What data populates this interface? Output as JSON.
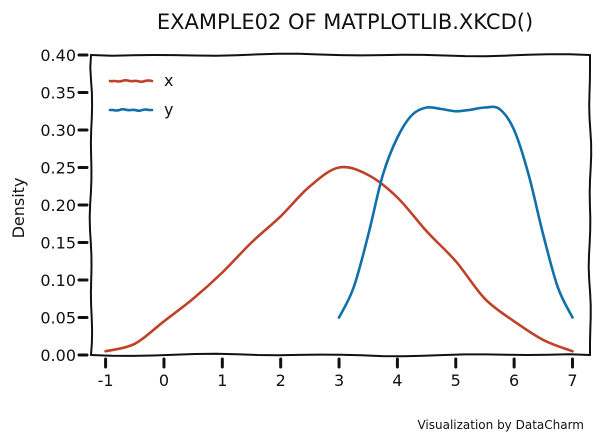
{
  "chart_data": {
    "type": "line",
    "title": "EXAMPLE02 OF MATPLOTLIB.XKCD()",
    "xlabel": "",
    "ylabel": "Density",
    "xlim": [
      -1.25,
      7.3
    ],
    "ylim": [
      0.0,
      0.4
    ],
    "xticks": [
      "-1",
      "0",
      "1",
      "2",
      "3",
      "4",
      "5",
      "6",
      "7"
    ],
    "yticks": [
      "0.00",
      "0.05",
      "0.10",
      "0.15",
      "0.20",
      "0.25",
      "0.30",
      "0.35",
      "0.40"
    ],
    "legend_position": "top-left",
    "credit": "Visualization by DataCharm",
    "series": [
      {
        "name": "x",
        "color": "#c0412a",
        "points": [
          [
            -1.0,
            0.005
          ],
          [
            -0.5,
            0.015
          ],
          [
            0.0,
            0.045
          ],
          [
            0.5,
            0.075
          ],
          [
            1.0,
            0.11
          ],
          [
            1.5,
            0.15
          ],
          [
            2.0,
            0.185
          ],
          [
            2.5,
            0.225
          ],
          [
            3.0,
            0.25
          ],
          [
            3.5,
            0.24
          ],
          [
            4.0,
            0.21
          ],
          [
            4.5,
            0.165
          ],
          [
            5.0,
            0.125
          ],
          [
            5.5,
            0.075
          ],
          [
            6.0,
            0.045
          ],
          [
            6.5,
            0.02
          ],
          [
            7.0,
            0.005
          ]
        ]
      },
      {
        "name": "y",
        "color": "#1170aa",
        "points": [
          [
            3.0,
            0.05
          ],
          [
            3.25,
            0.09
          ],
          [
            3.5,
            0.16
          ],
          [
            3.75,
            0.24
          ],
          [
            4.0,
            0.29
          ],
          [
            4.25,
            0.32
          ],
          [
            4.5,
            0.33
          ],
          [
            4.75,
            0.328
          ],
          [
            5.0,
            0.325
          ],
          [
            5.25,
            0.327
          ],
          [
            5.5,
            0.33
          ],
          [
            5.75,
            0.328
          ],
          [
            6.0,
            0.3
          ],
          [
            6.25,
            0.24
          ],
          [
            6.5,
            0.16
          ],
          [
            6.75,
            0.09
          ],
          [
            7.0,
            0.05
          ]
        ]
      }
    ]
  }
}
